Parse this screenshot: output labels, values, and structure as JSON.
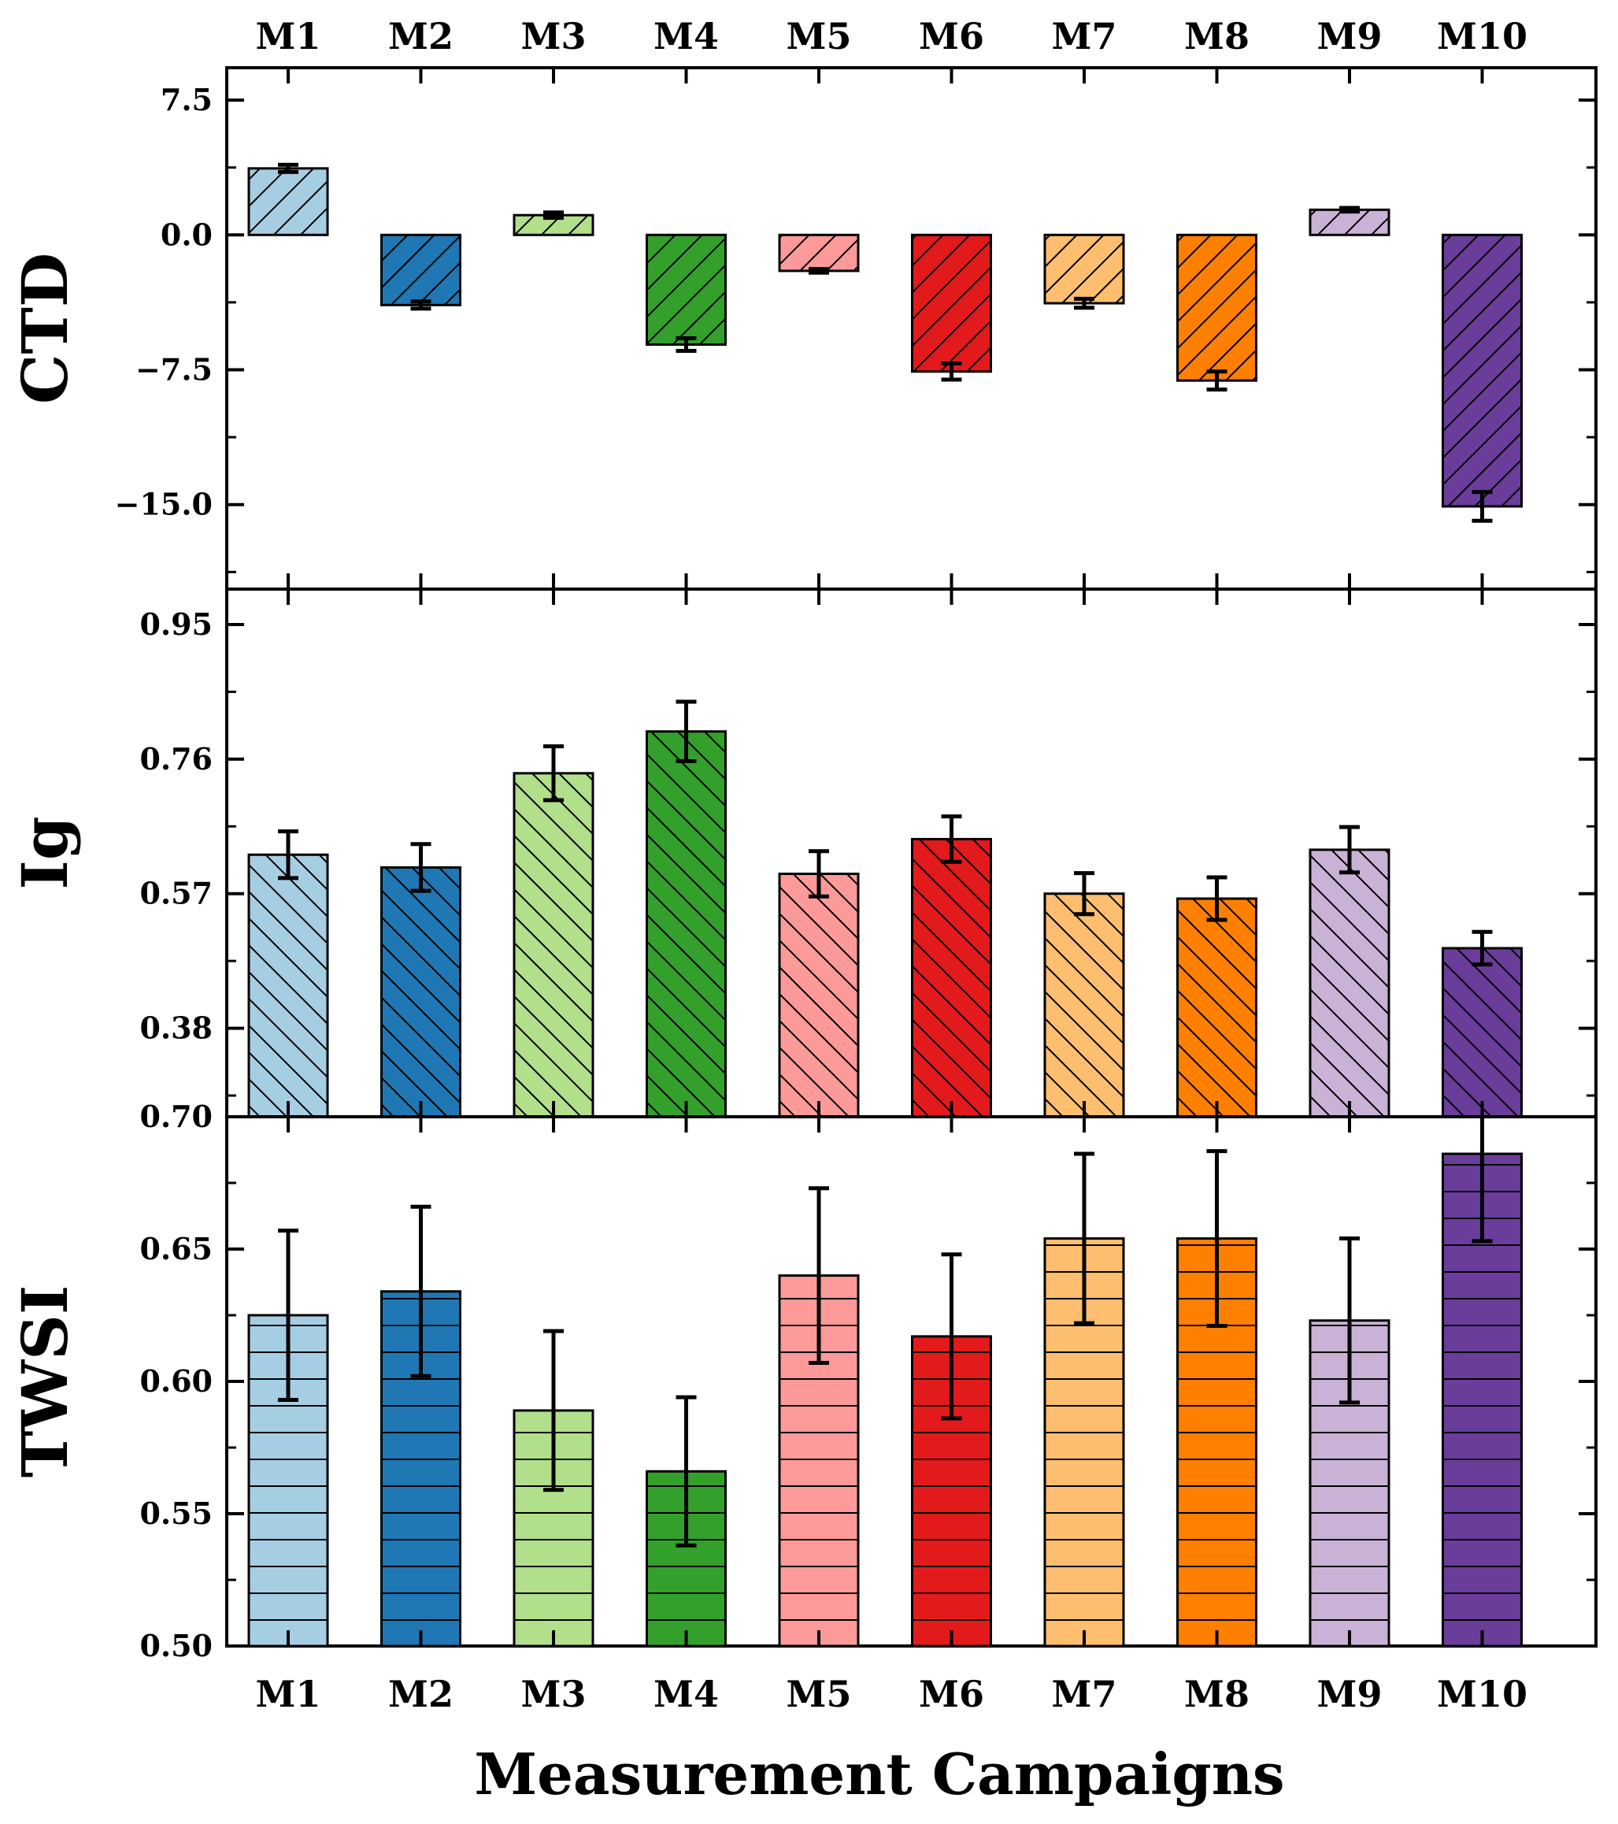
{
  "chart_data": {
    "type": "bar",
    "xlabel": "Measurement Campaigns",
    "categories": [
      "M1",
      "M2",
      "M3",
      "M4",
      "M5",
      "M6",
      "M7",
      "M8",
      "M9",
      "M10"
    ],
    "colors": [
      "#a6cee3",
      "#1f78b4",
      "#b2df8a",
      "#33a02c",
      "#fb9a99",
      "#e31a1c",
      "#fdbf6f",
      "#ff7f00",
      "#cab2d6",
      "#6a3d9a"
    ],
    "panels": [
      {
        "ylabel": "CTD",
        "ylim": [
          -19.7,
          9.3
        ],
        "yticks": [
          7.5,
          0.0,
          -7.5,
          -15.0
        ],
        "ytick_labels": [
          "7.5",
          "0.0",
          "−7.5",
          "−15.0"
        ],
        "hatch": "diag-up",
        "values": [
          3.7,
          -3.9,
          1.1,
          -6.1,
          -2.0,
          -7.6,
          -3.8,
          -8.1,
          1.4,
          -15.1
        ],
        "errors": [
          0.2,
          0.2,
          0.15,
          0.35,
          0.1,
          0.45,
          0.25,
          0.5,
          0.1,
          0.8
        ]
      },
      {
        "ylabel": "Ig",
        "ylim": [
          0.255,
          1.0
        ],
        "yticks": [
          0.95,
          0.76,
          0.57,
          0.38
        ],
        "ytick_labels": [
          "0.95",
          "0.76",
          "0.57",
          "0.38"
        ],
        "hatch": "diag-down",
        "values": [
          0.625,
          0.607,
          0.74,
          0.799,
          0.598,
          0.647,
          0.57,
          0.563,
          0.632,
          0.493
        ],
        "errors": [
          0.033,
          0.033,
          0.038,
          0.042,
          0.032,
          0.032,
          0.029,
          0.03,
          0.032,
          0.023
        ]
      },
      {
        "ylabel": "TWSI",
        "ylim": [
          0.5,
          0.7
        ],
        "yticks": [
          0.65,
          0.6,
          0.55,
          0.5
        ],
        "ytick_labels": [
          "0.65",
          "0.60",
          "0.55",
          "0.50"
        ],
        "extra_tick_label": "0.70",
        "hatch": "horizontal",
        "values": [
          0.625,
          0.634,
          0.589,
          0.566,
          0.64,
          0.617,
          0.654,
          0.654,
          0.623,
          0.686
        ],
        "errors": [
          0.032,
          0.032,
          0.03,
          0.028,
          0.033,
          0.031,
          0.032,
          0.033,
          0.031,
          0.033
        ]
      }
    ]
  }
}
